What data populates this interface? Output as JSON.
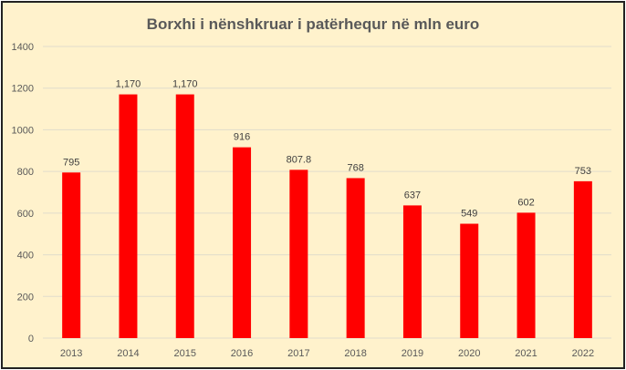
{
  "chart_data": {
    "type": "bar",
    "title": "Borxhi i nënshkruar i patërhequr në mln euro",
    "categories": [
      "2013",
      "2014",
      "2015",
      "2016",
      "2017",
      "2018",
      "2019",
      "2020",
      "2021",
      "2022"
    ],
    "values": [
      795,
      1170,
      1170,
      916,
      807.8,
      768,
      637,
      549,
      602,
      753
    ],
    "data_labels": [
      "795",
      "1,170",
      "1,170",
      "916",
      "807.8",
      "768",
      "637",
      "549",
      "602",
      "753"
    ],
    "xlabel": "",
    "ylabel": "",
    "ylim": [
      0,
      1400
    ],
    "yticks": [
      0,
      200,
      400,
      600,
      800,
      1000,
      1200,
      1400
    ],
    "grid": true,
    "legend": "none",
    "colors": {
      "bar": "#ff0000",
      "background": "#fff2cc",
      "grid": "#e0dccb",
      "text": "#595959"
    }
  }
}
